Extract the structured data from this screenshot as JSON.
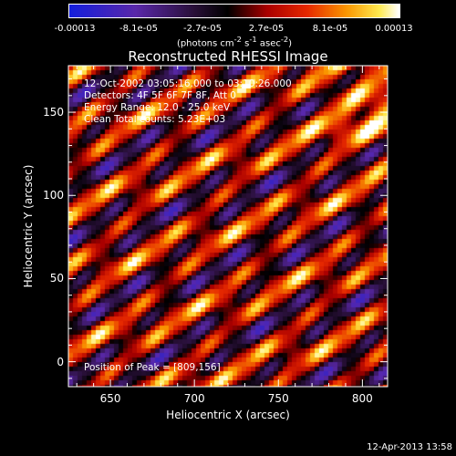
{
  "colorbar": {
    "tick_labels": [
      "-0.00013",
      "-8.1e-05",
      "-2.7e-05",
      "2.7e-05",
      "8.1e-05",
      "0.00013"
    ],
    "unit_html": "(photons cm<sup>-2</sup> s<sup>-1</sup> asec<sup>-2</sup>)",
    "range": [
      -0.00013,
      0.00013
    ]
  },
  "chart_data": {
    "type": "heatmap",
    "title": "Reconstructed RHESSI Image",
    "xlabel": "Heliocentric X (arcsec)",
    "ylabel": "Heliocentric Y (arcsec)",
    "xlim": [
      625,
      815
    ],
    "ylim": [
      -15,
      178
    ],
    "x_ticks": [
      650,
      700,
      750,
      800
    ],
    "y_ticks": [
      0,
      50,
      100,
      150
    ],
    "colormap": "RHESSI blue-purple-red-yellow-white",
    "peak_position": [
      809,
      156
    ]
  },
  "annotations": {
    "time": "12-Oct-2002 03:05:16.000 to 03:10:26.000",
    "detectors": "Detectors: 4F 5F 6F 7F 8F, Att 0",
    "energy": "Energy Range: 12.0 - 25.0 keV",
    "clean": "Clean    Total counts: 5.23E+03",
    "peak": "Position of Peak = [809,156]"
  },
  "footer": {
    "timestamp": "12-Apr-2013 13:58"
  }
}
